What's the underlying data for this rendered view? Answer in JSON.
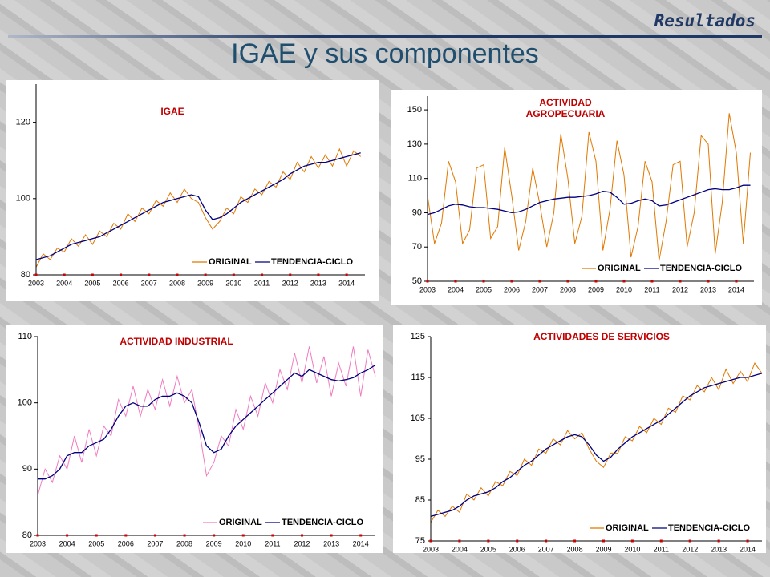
{
  "header": "Resultados",
  "title": "IGAE y sus componentes",
  "chart_data": [
    {
      "type": "line",
      "title": "IGAE",
      "legend": "lower right",
      "x": [
        2003,
        2003.25,
        2003.5,
        2003.75,
        2004,
        2004.25,
        2004.5,
        2004.75,
        2005,
        2005.25,
        2005.5,
        2005.75,
        2006,
        2006.25,
        2006.5,
        2006.75,
        2007,
        2007.25,
        2007.5,
        2007.75,
        2008,
        2008.25,
        2008.5,
        2008.75,
        2009,
        2009.25,
        2009.5,
        2009.75,
        2010,
        2010.25,
        2010.5,
        2010.75,
        2011,
        2011.25,
        2011.5,
        2011.75,
        2012,
        2012.25,
        2012.5,
        2012.75,
        2013,
        2013.25,
        2013.5,
        2013.75,
        2014,
        2014.25,
        2014.5
      ],
      "xlim": [
        2003,
        2014.65
      ],
      "xticks": [
        2003,
        2004,
        2005,
        2006,
        2007,
        2008,
        2009,
        2010,
        2011,
        2012,
        2013,
        2014
      ],
      "ylim": [
        80,
        130
      ],
      "yticks": [
        80,
        100,
        120
      ],
      "series": [
        {
          "name": "ORIGINAL",
          "color": "#e07800",
          "values": [
            82,
            85.5,
            84,
            87,
            86,
            89.5,
            87.5,
            90.5,
            88,
            91.5,
            90,
            93.5,
            92,
            96,
            94,
            97.5,
            96,
            99.5,
            98,
            101.5,
            99,
            102.5,
            100,
            99,
            95,
            92,
            94,
            97.5,
            96,
            100.5,
            99,
            102.5,
            101,
            104.5,
            103,
            107,
            105,
            109.5,
            107,
            111,
            108,
            111.5,
            108.5,
            113,
            108.5,
            112.5,
            111
          ]
        },
        {
          "name": "TENDENCIA-CICLO",
          "color": "#000080",
          "values": [
            84,
            84.5,
            85,
            86,
            87,
            88,
            88.5,
            89,
            89.5,
            90,
            91,
            92,
            93,
            94,
            95,
            96,
            97,
            98,
            99,
            99.5,
            100,
            100.5,
            101,
            100.5,
            97,
            94.5,
            95,
            96,
            97.5,
            99,
            100,
            101,
            102,
            103,
            104,
            105,
            106.5,
            107.5,
            108.5,
            109,
            109.5,
            109.5,
            110,
            110.5,
            111,
            111.5,
            112
          ]
        }
      ]
    },
    {
      "type": "line",
      "title": "ACTIVIDAD AGROPECUARIA",
      "legend": "lower right",
      "x": [
        2003,
        2003.25,
        2003.5,
        2003.75,
        2004,
        2004.25,
        2004.5,
        2004.75,
        2005,
        2005.25,
        2005.5,
        2005.75,
        2006,
        2006.25,
        2006.5,
        2006.75,
        2007,
        2007.25,
        2007.5,
        2007.75,
        2008,
        2008.25,
        2008.5,
        2008.75,
        2009,
        2009.25,
        2009.5,
        2009.75,
        2010,
        2010.25,
        2010.5,
        2010.75,
        2011,
        2011.25,
        2011.5,
        2011.75,
        2012,
        2012.25,
        2012.5,
        2012.75,
        2013,
        2013.25,
        2013.5,
        2013.75,
        2014,
        2014.25,
        2014.5
      ],
      "xlim": [
        2003,
        2014.63
      ],
      "xticks": [
        2003,
        2004,
        2005,
        2006,
        2007,
        2008,
        2009,
        2010,
        2011,
        2012,
        2013,
        2014
      ],
      "ylim": [
        50,
        158
      ],
      "yticks": [
        50,
        70,
        90,
        110,
        130,
        150
      ],
      "series": [
        {
          "name": "ORIGINAL",
          "color": "#e07800",
          "values": [
            100,
            72,
            84,
            120,
            108,
            72,
            80,
            116,
            118,
            75,
            82,
            128,
            100,
            68,
            85,
            116,
            95,
            70,
            90,
            136,
            110,
            72,
            88,
            137,
            120,
            68,
            92,
            132,
            112,
            64,
            82,
            120,
            108,
            62,
            85,
            118,
            120,
            70,
            90,
            135,
            130,
            66,
            96,
            148,
            125,
            72,
            125
          ]
        },
        {
          "name": "TENDENCIA-CICLO",
          "color": "#000080",
          "values": [
            89,
            90,
            92,
            94,
            95,
            94.5,
            93.5,
            93,
            93,
            92.5,
            92,
            91,
            90,
            90.5,
            92,
            94,
            96,
            97,
            98,
            98.5,
            99,
            99,
            99.5,
            100,
            101,
            102.5,
            102,
            99,
            95,
            95.5,
            97,
            98,
            97,
            94,
            94.5,
            96,
            97.5,
            99,
            100.5,
            102,
            103.5,
            104,
            103.5,
            103.5,
            104.5,
            106,
            106
          ]
        }
      ]
    },
    {
      "type": "line",
      "title": "ACTIVIDAD INDUSTRIAL",
      "legend": "lower right",
      "x": [
        2003,
        2003.25,
        2003.5,
        2003.75,
        2004,
        2004.25,
        2004.5,
        2004.75,
        2005,
        2005.25,
        2005.5,
        2005.75,
        2006,
        2006.25,
        2006.5,
        2006.75,
        2007,
        2007.25,
        2007.5,
        2007.75,
        2008,
        2008.25,
        2008.5,
        2008.75,
        2009,
        2009.25,
        2009.5,
        2009.75,
        2010,
        2010.25,
        2010.5,
        2010.75,
        2011,
        2011.25,
        2011.5,
        2011.75,
        2012,
        2012.25,
        2012.5,
        2012.75,
        2013,
        2013.25,
        2013.5,
        2013.75,
        2014,
        2014.25,
        2014.5
      ],
      "xlim": [
        2003,
        2014.5
      ],
      "xticks": [
        2003,
        2004,
        2005,
        2006,
        2007,
        2008,
        2009,
        2010,
        2011,
        2012,
        2013,
        2014
      ],
      "ylim": [
        80,
        110
      ],
      "yticks": [
        80,
        90,
        100,
        110
      ],
      "series": [
        {
          "name": "ORIGINAL",
          "color": "#f07cc0",
          "values": [
            86,
            90,
            88,
            92,
            90,
            95,
            91,
            96,
            92,
            96.5,
            95,
            100.5,
            98,
            102.5,
            98,
            102,
            99,
            103.5,
            99.5,
            104,
            100,
            102,
            96,
            89,
            91,
            95,
            93.5,
            99,
            96,
            101,
            98,
            103,
            100,
            105,
            102,
            107.5,
            103,
            108.5,
            103,
            107,
            101,
            106,
            102.5,
            108.5,
            101,
            108,
            104
          ]
        },
        {
          "name": "TENDENCIA-CICLO",
          "color": "#000080",
          "values": [
            88.5,
            88.5,
            89,
            90,
            92,
            92.5,
            92.5,
            93.5,
            94,
            94.5,
            96,
            98,
            99.5,
            100,
            99.5,
            99.5,
            100.5,
            101,
            101,
            101.5,
            101,
            100,
            97,
            93.5,
            92.5,
            93,
            95,
            96.5,
            97.5,
            98.5,
            99.5,
            100.5,
            101.5,
            102.5,
            103.5,
            104.5,
            104,
            105,
            104.5,
            104,
            103.5,
            103.3,
            103.5,
            103.8,
            104.5,
            105,
            105.7
          ]
        }
      ]
    },
    {
      "type": "line",
      "title": "ACTIVIDADES DE SERVICIOS",
      "legend": "lower right",
      "x": [
        2003,
        2003.25,
        2003.5,
        2003.75,
        2004,
        2004.25,
        2004.5,
        2004.75,
        2005,
        2005.25,
        2005.5,
        2005.75,
        2006,
        2006.25,
        2006.5,
        2006.75,
        2007,
        2007.25,
        2007.5,
        2007.75,
        2008,
        2008.25,
        2008.5,
        2008.75,
        2009,
        2009.25,
        2009.5,
        2009.75,
        2010,
        2010.25,
        2010.5,
        2010.75,
        2011,
        2011.25,
        2011.5,
        2011.75,
        2012,
        2012.25,
        2012.5,
        2012.75,
        2013,
        2013.25,
        2013.5,
        2013.75,
        2014,
        2014.25,
        2014.5
      ],
      "xlim": [
        2003,
        2014.5
      ],
      "xticks": [
        2003,
        2004,
        2005,
        2006,
        2007,
        2008,
        2009,
        2010,
        2011,
        2012,
        2013,
        2014
      ],
      "ylim": [
        75,
        125
      ],
      "yticks": [
        75,
        85,
        95,
        105,
        115,
        125
      ],
      "series": [
        {
          "name": "ORIGINAL",
          "color": "#e07800",
          "values": [
            79.5,
            82.5,
            81,
            83.5,
            82,
            86.5,
            85,
            88,
            86,
            89.5,
            88.5,
            92,
            91,
            95,
            93.5,
            97.5,
            96.5,
            100,
            98.5,
            102,
            100,
            101.5,
            97.5,
            94.5,
            93,
            96.5,
            96.5,
            100.5,
            99.5,
            103,
            101.5,
            105,
            103.5,
            107.5,
            106.5,
            110.5,
            109.5,
            113,
            111.5,
            115,
            112,
            117,
            113.5,
            116.5,
            114,
            118.5,
            116
          ]
        },
        {
          "name": "TENDENCIA-CICLO",
          "color": "#000080",
          "values": [
            81,
            81.5,
            82,
            82.5,
            83.5,
            85,
            86,
            86.5,
            87,
            88,
            89.5,
            90.5,
            92,
            93.5,
            94.5,
            96,
            97.5,
            98.5,
            99.5,
            100.5,
            101,
            100.5,
            98.5,
            96,
            94.5,
            95.5,
            97.5,
            99,
            100.5,
            101.5,
            102.5,
            103.5,
            104.5,
            106,
            107.5,
            109,
            110.5,
            111.5,
            112.5,
            113,
            113.5,
            114,
            114.5,
            115,
            115,
            115.5,
            116
          ]
        }
      ]
    }
  ]
}
